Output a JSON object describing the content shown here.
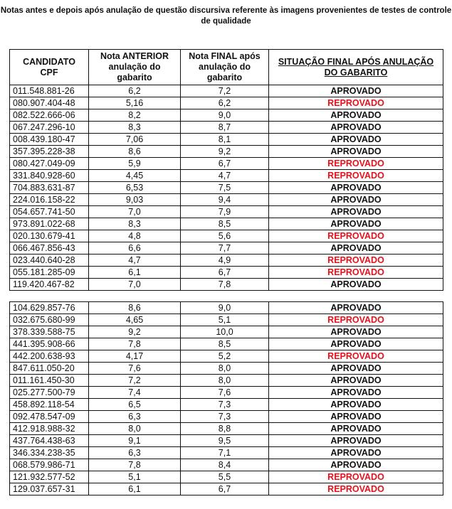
{
  "title": "Notas antes e depois após anulação de questão discursiva referente às imagens provenientes de testes de controle de qualidade",
  "headers": {
    "cpf": "CANDIDATO CPF",
    "anterior": "Nota ANTERIOR anulação do gabarito",
    "final": "Nota FINAL após anulação do gabarito",
    "situacao": "SITUAÇÃO FINAL APÓS ANULAÇÃO DO GABARITO"
  },
  "colors": {
    "reprovado": "#e8111b",
    "aprovado": "#111111"
  },
  "table1": [
    [
      "011.548.881-26",
      "6,2",
      "7,2",
      "APROVADO"
    ],
    [
      "080.907.404-48",
      "5,16",
      "6,2",
      "REPROVADO"
    ],
    [
      "082.522.666-06",
      "8,2",
      "9,0",
      "APROVADO"
    ],
    [
      "067.247.296-10",
      "8,3",
      "8,7",
      "APROVADO"
    ],
    [
      "008.439.180-47",
      "7,06",
      "8,1",
      "APROVADO"
    ],
    [
      "357.395.228-38",
      "8,6",
      "9,2",
      "APROVADO"
    ],
    [
      "080.427.049-09",
      "5,9",
      "6,7",
      "REPROVADO"
    ],
    [
      "331.840.928-60",
      "4,45",
      "4,7",
      "REPROVADO"
    ],
    [
      "704.883.631-87",
      "6,53",
      "7,5",
      "APROVADO"
    ],
    [
      "224.016.158-22",
      "9,03",
      "9,4",
      "APROVADO"
    ],
    [
      "054.657.741-50",
      "7,0",
      "7,9",
      "APROVADO"
    ],
    [
      "973.891.022-68",
      "8,3",
      "8,5",
      "APROVADO"
    ],
    [
      "020.130.679-41",
      "4,8",
      "5,6",
      "REPROVADO"
    ],
    [
      "066.467.856-43",
      "6,6",
      "7,7",
      "APROVADO"
    ],
    [
      "023.440.640-28",
      "4,7",
      "4,9",
      "REPROVADO"
    ],
    [
      "055.181.285-09",
      "6,1",
      "6,7",
      "REPROVADO"
    ],
    [
      "119.420.467-82",
      "7,0",
      "7,8",
      "APROVADO"
    ]
  ],
  "table2": [
    [
      "104.629.857-76",
      "8,6",
      "9,0",
      "APROVADO"
    ],
    [
      "032.675.680-99",
      "4,65",
      "5,1",
      "REPROVADO"
    ],
    [
      "378.339.588-75",
      "9,2",
      "10,0",
      "APROVADO"
    ],
    [
      "441.395.908-66",
      "7,8",
      "8,5",
      "APROVADO"
    ],
    [
      "442.200.638-93",
      "4,17",
      "5,2",
      "REPROVADO"
    ],
    [
      "847.611.050-20",
      "7,6",
      "8,0",
      "APROVADO"
    ],
    [
      "011.161.450-30",
      "7,2",
      "8,0",
      "APROVADO"
    ],
    [
      "025.277.500-79",
      "7,4",
      "7,6",
      "APROVADO"
    ],
    [
      "458.892.118-54",
      "6,5",
      "7,3",
      "APROVADO"
    ],
    [
      "092.478.547-09",
      "6,3",
      "7,3",
      "APROVADO"
    ],
    [
      "412.918.988-32",
      "8,0",
      "8,8",
      "APROVADO"
    ],
    [
      "437.764.438-63",
      "9,1",
      "9,5",
      "APROVADO"
    ],
    [
      "346.334.238-35",
      "6,3",
      "7,1",
      "APROVADO"
    ],
    [
      "068.579.986-71",
      "7,8",
      "8,4",
      "APROVADO"
    ],
    [
      "121.932.577-52",
      "5,1",
      "5,5",
      "REPROVADO"
    ],
    [
      "129.037.657-31",
      "6,1",
      "6,7",
      "REPROVADO"
    ]
  ]
}
